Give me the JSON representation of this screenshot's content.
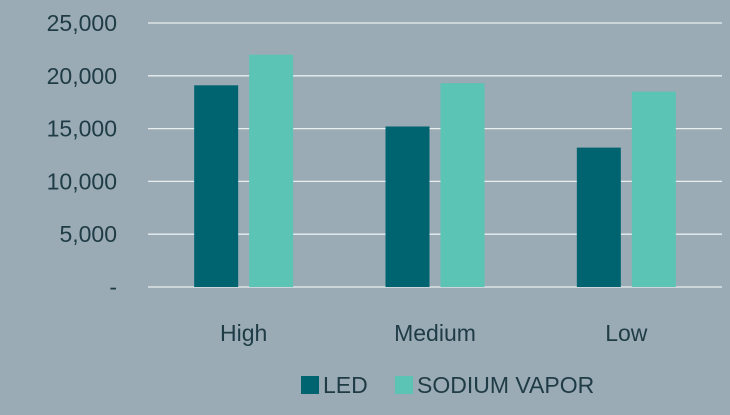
{
  "chart_data": {
    "type": "bar",
    "title": "",
    "xlabel": "",
    "ylabel": "",
    "categories": [
      "High",
      "Medium",
      "Low"
    ],
    "series": [
      {
        "name": "LED",
        "values": [
          19100,
          15200,
          13200
        ],
        "color": "#006470"
      },
      {
        "name": "SODIUM VAPOR",
        "values": [
          22000,
          19300,
          18500
        ],
        "color": "#5bc4b4"
      }
    ],
    "ylim": [
      0,
      25000
    ],
    "yticks": [
      0,
      5000,
      10000,
      15000,
      20000,
      25000
    ],
    "ytick_labels": [
      "-",
      "5,000",
      "10,000",
      "15,000",
      "20,000",
      "25,000"
    ],
    "grid": true,
    "legend_position": "bottom"
  }
}
